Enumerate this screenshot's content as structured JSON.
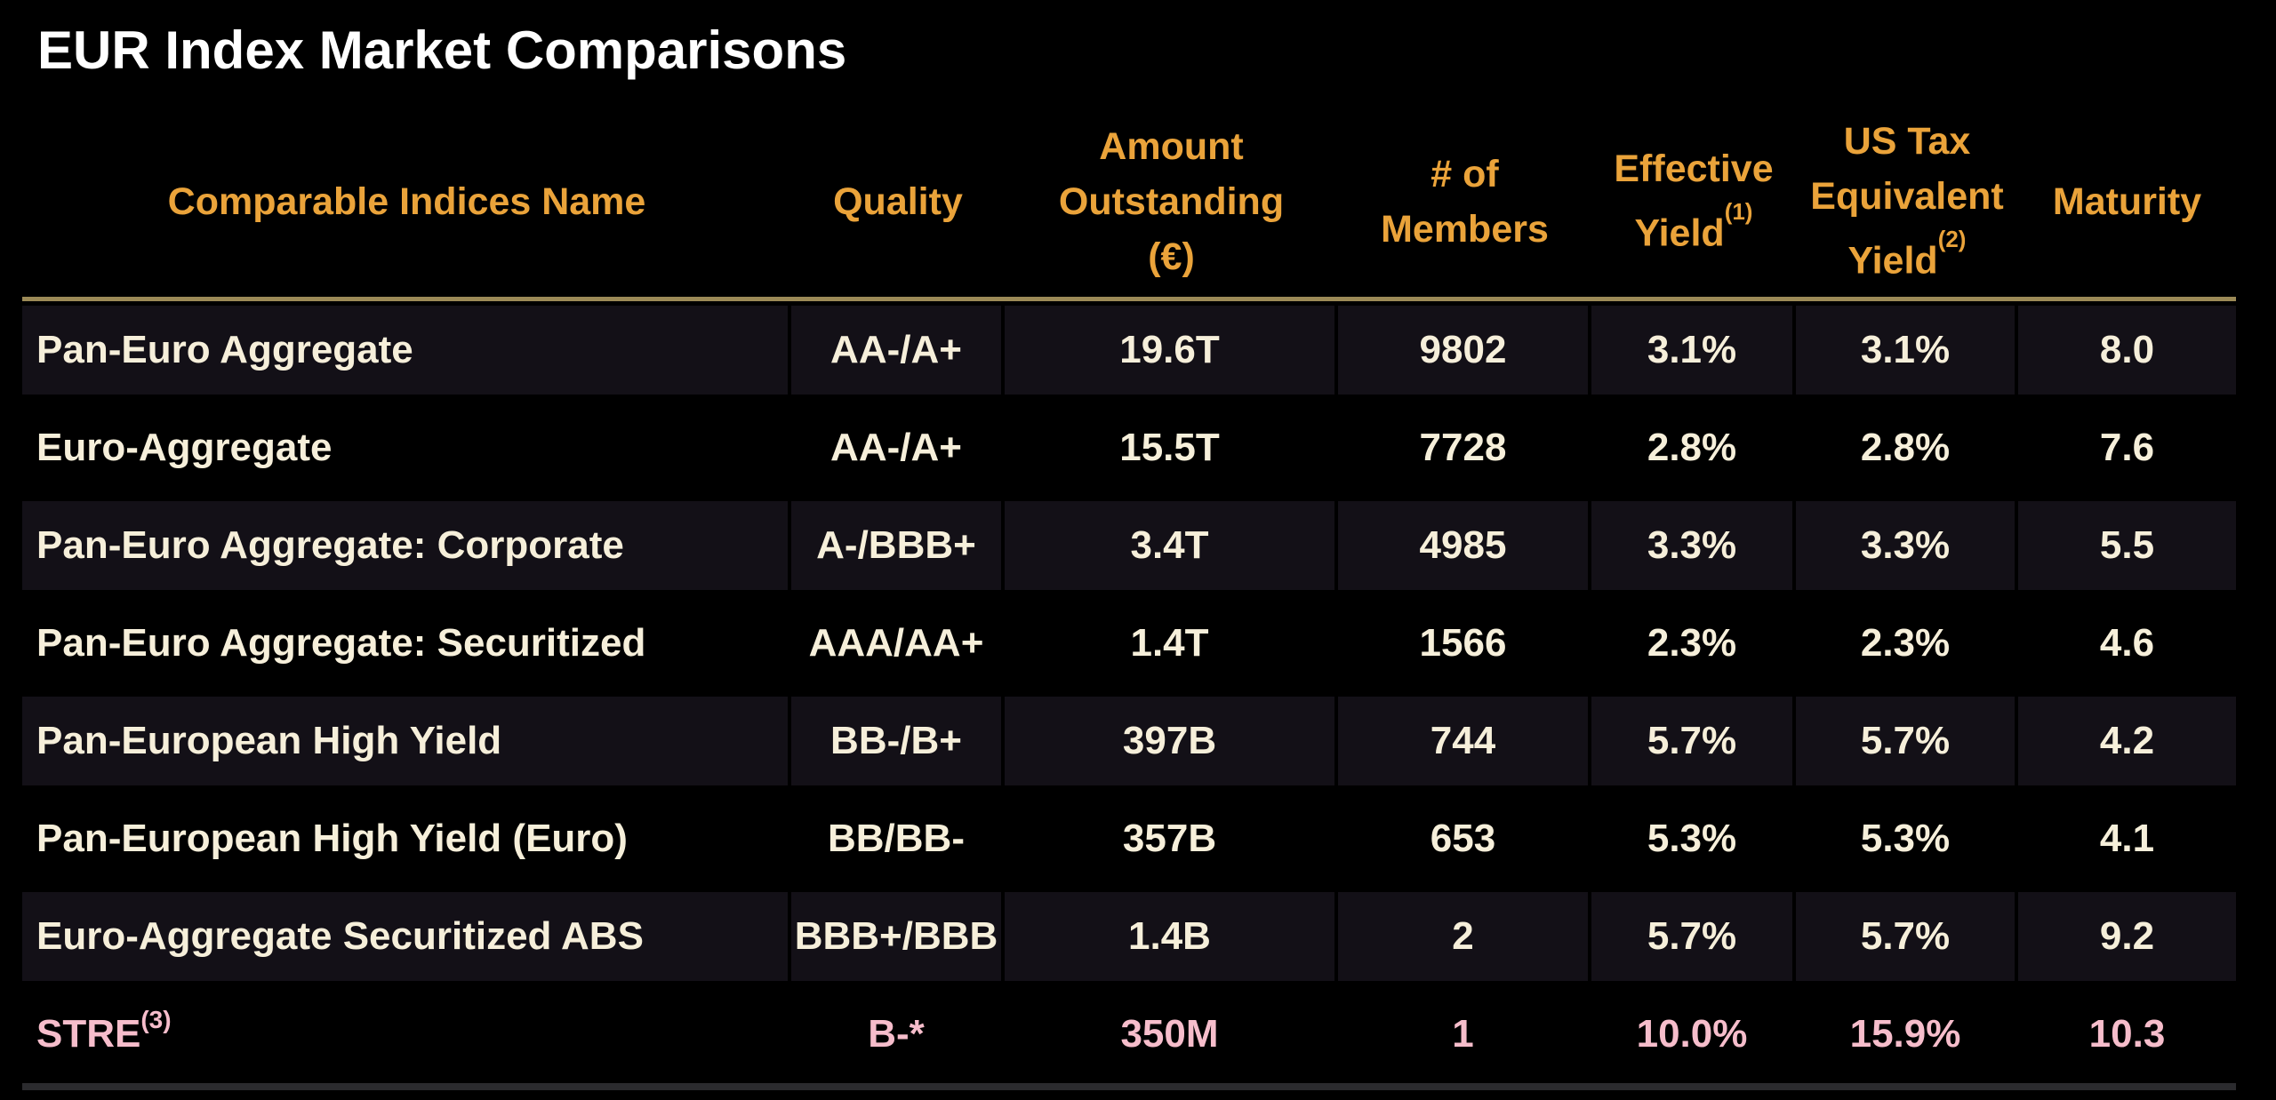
{
  "title": "EUR Index Market Comparisons",
  "colors": {
    "background": "#000000",
    "title_text": "#FFFFFF",
    "header_text": "#EAA33A",
    "row_text": "#F6EFDA",
    "highlight_row_text": "#F6BDCB",
    "shaded_row_bg": "#131017",
    "header_divider": "#9C8A57",
    "bottom_divider": "#2B2B2E"
  },
  "table": {
    "header": {
      "name": {
        "lines": [
          "Comparable Indices Name"
        ],
        "sup": ""
      },
      "quality": {
        "lines": [
          "Quality"
        ],
        "sup": ""
      },
      "amount": {
        "lines": [
          "Amount",
          "Outstanding",
          "(€)"
        ],
        "sup": ""
      },
      "members": {
        "lines": [
          "# of",
          "Members"
        ],
        "sup": ""
      },
      "effective_yield": {
        "lines": [
          "Effective",
          "Yield"
        ],
        "sup": "(1)"
      },
      "tax_equivalent_yield": {
        "lines": [
          "US Tax",
          "Equivalent",
          "Yield"
        ],
        "sup": "(2)"
      },
      "maturity": {
        "lines": [
          "Maturity"
        ],
        "sup": ""
      }
    },
    "rows": [
      {
        "name": "Pan-Euro Aggregate",
        "name_sup": "",
        "quality": "AA-/A+",
        "amount": "19.6T",
        "members": "9802",
        "effective_yield": "3.1%",
        "tax_equivalent_yield": "3.1%",
        "maturity": "8.0"
      },
      {
        "name": "Euro-Aggregate",
        "name_sup": "",
        "quality": "AA-/A+",
        "amount": "15.5T",
        "members": "7728",
        "effective_yield": "2.8%",
        "tax_equivalent_yield": "2.8%",
        "maturity": "7.6"
      },
      {
        "name": "Pan-Euro Aggregate: Corporate",
        "name_sup": "",
        "quality": "A-/BBB+",
        "amount": "3.4T",
        "members": "4985",
        "effective_yield": "3.3%",
        "tax_equivalent_yield": "3.3%",
        "maturity": "5.5"
      },
      {
        "name": "Pan-Euro Aggregate: Securitized",
        "name_sup": "",
        "quality": "AAA/AA+",
        "amount": "1.4T",
        "members": "1566",
        "effective_yield": "2.3%",
        "tax_equivalent_yield": "2.3%",
        "maturity": "4.6"
      },
      {
        "name": "Pan-European High Yield",
        "name_sup": "",
        "quality": "BB-/B+",
        "amount": "397B",
        "members": "744",
        "effective_yield": "5.7%",
        "tax_equivalent_yield": "5.7%",
        "maturity": "4.2"
      },
      {
        "name": "Pan-European High Yield (Euro)",
        "name_sup": "",
        "quality": "BB/BB-",
        "amount": "357B",
        "members": "653",
        "effective_yield": "5.3%",
        "tax_equivalent_yield": "5.3%",
        "maturity": "4.1"
      },
      {
        "name": "Euro-Aggregate Securitized ABS",
        "name_sup": "",
        "quality": "BBB+/BBB",
        "amount": "1.4B",
        "members": "2",
        "effective_yield": "5.7%",
        "tax_equivalent_yield": "5.7%",
        "maturity": "9.2"
      },
      {
        "name": "STRE",
        "name_sup": "(3)",
        "quality": "B-*",
        "amount": "350M",
        "members": "1",
        "effective_yield": "10.0%",
        "tax_equivalent_yield": "15.9%",
        "maturity": "10.3"
      }
    ]
  }
}
